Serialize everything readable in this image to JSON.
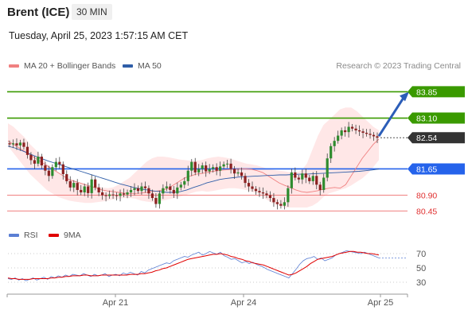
{
  "header": {
    "title": "Brent (ICE)",
    "interval": "30 MIN",
    "datetime": "Tuesday, April 25, 2023 1:57:15 AM CET"
  },
  "legend": {
    "ma20_label": "MA 20 + Bollinger Bands",
    "ma20_color": "#f08080",
    "ma50_label": "MA 50",
    "ma50_color": "#2f5ea8",
    "copyright": "Research © 2023 Trading Central",
    "rsi_label": "RSI",
    "rsi_color": "#5b7fd4",
    "ma9_label": "9MA",
    "ma9_color": "#e00000"
  },
  "colors": {
    "resistance": "#3a9a00",
    "pivot": "#2563eb",
    "support": "#f08080",
    "up": "#2e8b2e",
    "down": "#8b2020",
    "current": "#333333"
  },
  "chart_data": [
    {
      "type": "candlestick",
      "ylim": [
        80.3,
        84.2
      ],
      "x_ticks": [
        "Apr 21",
        "Apr 24",
        "Apr 25"
      ],
      "levels": [
        {
          "label": "83.85",
          "value": 83.85,
          "kind": "resistance"
        },
        {
          "label": "83.10",
          "value": 83.1,
          "kind": "resistance"
        },
        {
          "label": "82.54",
          "value": 82.54,
          "kind": "current"
        },
        {
          "label": "81.65",
          "value": 81.65,
          "kind": "pivot"
        },
        {
          "label": "80.90",
          "value": 80.9,
          "kind": "support"
        },
        {
          "label": "80.45",
          "value": 80.45,
          "kind": "support"
        }
      ],
      "close": [
        82.35,
        82.38,
        82.32,
        82.4,
        82.28,
        82.05,
        81.9,
        81.8,
        82.0,
        81.75,
        81.6,
        81.45,
        81.7,
        81.85,
        81.78,
        81.5,
        81.3,
        81.12,
        81.25,
        81.05,
        80.98,
        81.15,
        80.96,
        81.35,
        81.12,
        80.98,
        80.9,
        80.88,
        80.92,
        80.9,
        80.88,
        80.95,
        80.92,
        80.98,
        81.05,
        81.1,
        81.02,
        81.15,
        81.1,
        80.95,
        80.82,
        80.65,
        80.95,
        81.1,
        81.15,
        81.05,
        80.95,
        81.12,
        81.2,
        81.3,
        81.6,
        81.85,
        81.55,
        81.65,
        81.75,
        81.58,
        81.65,
        81.7,
        81.6,
        81.72,
        81.78,
        81.8,
        81.65,
        81.52,
        81.55,
        81.45,
        81.25,
        81.15,
        81.08,
        81.02,
        80.98,
        80.95,
        80.9,
        80.82,
        80.7,
        80.65,
        80.6,
        80.7,
        81.1,
        81.55,
        81.4,
        81.35,
        81.52,
        81.4,
        81.3,
        81.45,
        81.2,
        81.05,
        81.4,
        81.95,
        82.3,
        82.45,
        82.6,
        82.75,
        82.7,
        82.85,
        82.8,
        82.75,
        82.72,
        82.68,
        82.65,
        82.62,
        82.58,
        82.54
      ],
      "ma20": [
        82.45,
        82.35,
        82.25,
        82.15,
        82.05,
        81.95,
        81.85,
        81.75,
        81.65,
        81.55,
        81.45,
        81.35,
        81.3,
        81.25,
        81.2,
        81.15,
        81.1,
        81.05,
        81.02,
        81.0,
        80.98,
        80.96,
        80.95,
        80.95,
        80.96,
        80.98,
        81.0,
        81.02,
        81.05,
        81.1,
        81.2,
        81.3,
        81.4,
        81.45,
        81.5,
        81.52,
        81.55,
        81.58,
        81.6,
        81.62,
        81.63,
        81.64,
        81.65,
        81.65,
        81.64,
        81.6,
        81.55,
        81.45,
        81.35,
        81.25,
        81.18,
        81.12,
        81.05,
        81.0,
        80.98,
        81.0,
        81.03,
        81.07,
        81.1,
        81.12,
        81.1,
        81.2,
        81.45,
        81.7,
        81.95,
        82.15,
        82.35,
        82.5
      ],
      "ma20_start": 0,
      "bb_upper": [
        82.95,
        82.85,
        82.7,
        82.55,
        82.35,
        82.2,
        82.0,
        81.8,
        81.65,
        81.55,
        81.45,
        81.35,
        81.3,
        81.25,
        81.2,
        81.18,
        81.15,
        81.12,
        81.1,
        81.12,
        81.2,
        81.3,
        81.4,
        81.55,
        81.7,
        81.85,
        81.95,
        82.0,
        82.0,
        81.98,
        81.95,
        81.92,
        81.9,
        81.88,
        81.88,
        81.9,
        81.95,
        81.98,
        82.0,
        81.98,
        81.95,
        81.9,
        81.85,
        81.8,
        81.78,
        81.75,
        81.7,
        81.65,
        81.62,
        81.6,
        81.58,
        81.55,
        81.55,
        81.6,
        81.8,
        82.2,
        82.6,
        82.9,
        83.05,
        83.2,
        83.35,
        83.4,
        83.4,
        83.3,
        83.15,
        83.0,
        82.85,
        82.75
      ],
      "bb_lower": [
        82.3,
        82.1,
        81.9,
        81.7,
        81.5,
        81.35,
        81.2,
        81.05,
        80.95,
        80.85,
        80.8,
        80.75,
        80.72,
        80.7,
        80.68,
        80.68,
        80.7,
        80.72,
        80.75,
        80.78,
        80.8,
        80.82,
        80.82,
        80.8,
        80.75,
        80.72,
        80.7,
        80.72,
        80.75,
        80.78,
        80.82,
        80.85,
        80.9,
        80.95,
        81.0,
        81.02,
        81.0,
        81.02,
        81.05,
        81.08,
        81.1,
        81.1,
        81.08,
        81.05,
        81.0,
        80.95,
        80.85,
        80.75,
        80.65,
        80.6,
        80.55,
        80.55,
        80.55,
        80.55,
        80.55,
        80.6,
        80.7,
        80.85,
        80.95,
        81.0,
        81.05,
        81.1,
        81.18,
        81.28,
        81.38,
        81.52,
        81.7,
        81.9
      ],
      "ma50": [
        82.3,
        82.25,
        82.18,
        82.1,
        82.02,
        81.95,
        81.88,
        81.82,
        81.76,
        81.7,
        81.64,
        81.58,
        81.52,
        81.46,
        81.4,
        81.34,
        81.28,
        81.22,
        81.17,
        81.12,
        81.08,
        81.05,
        81.02,
        81.0,
        80.98,
        80.98,
        81.0,
        81.05,
        81.12,
        81.18,
        81.25,
        81.3,
        81.35,
        81.38,
        81.4,
        81.42,
        81.43,
        81.44,
        81.45,
        81.46,
        81.47,
        81.48,
        81.48,
        81.49,
        81.5,
        81.5,
        81.51,
        81.52,
        81.53,
        81.54,
        81.55,
        81.56,
        81.57,
        81.58,
        81.6,
        81.62,
        81.65
      ]
    },
    {
      "type": "line",
      "ylim": [
        20,
        80
      ],
      "y_ticks": [
        "70",
        "50",
        "30"
      ],
      "series": [
        {
          "name": "RSI",
          "values": [
            35,
            34,
            36,
            33,
            35,
            32,
            34,
            36,
            33,
            35,
            37,
            34,
            38,
            36,
            39,
            37,
            40,
            38,
            41,
            40,
            39,
            42,
            40,
            38,
            41,
            39,
            40,
            42,
            38,
            40,
            41,
            39,
            43,
            41,
            44,
            42,
            40,
            45,
            43,
            47,
            49,
            51,
            53,
            55,
            57,
            56,
            60,
            62,
            64,
            66,
            65,
            68,
            70,
            72,
            68,
            70,
            73,
            71,
            69,
            72,
            67,
            65,
            62,
            63,
            60,
            57,
            59,
            56,
            58,
            55,
            53,
            51,
            48,
            46,
            44,
            42,
            40,
            38,
            36,
            42,
            48,
            55,
            60,
            63,
            64,
            66,
            62,
            64,
            60,
            62,
            64,
            68,
            70,
            72,
            74,
            73,
            72,
            71,
            70,
            72,
            70,
            68,
            66,
            64
          ]
        },
        {
          "name": "9MA",
          "values": [
            36,
            35,
            35,
            34,
            34,
            34,
            34,
            35,
            35,
            35,
            35,
            35,
            36,
            36,
            37,
            37,
            38,
            38,
            39,
            39,
            39,
            40,
            40,
            39,
            39,
            39,
            40,
            40,
            40,
            40,
            40,
            40,
            40,
            40,
            41,
            41,
            41,
            42,
            42,
            43,
            44,
            46,
            47,
            49,
            50,
            52,
            54,
            56,
            58,
            60,
            62,
            63,
            64,
            65,
            66,
            67,
            68,
            69,
            69,
            70,
            69,
            68,
            66,
            65,
            63,
            62,
            60,
            59,
            57,
            56,
            55,
            54,
            52,
            50,
            48,
            46,
            44,
            42,
            40,
            41,
            43,
            46,
            49,
            52,
            56,
            59,
            62,
            63,
            64,
            65,
            66,
            68,
            70,
            71,
            72,
            73,
            73,
            72,
            72,
            71,
            70,
            70,
            69,
            68
          ]
        }
      ]
    }
  ]
}
